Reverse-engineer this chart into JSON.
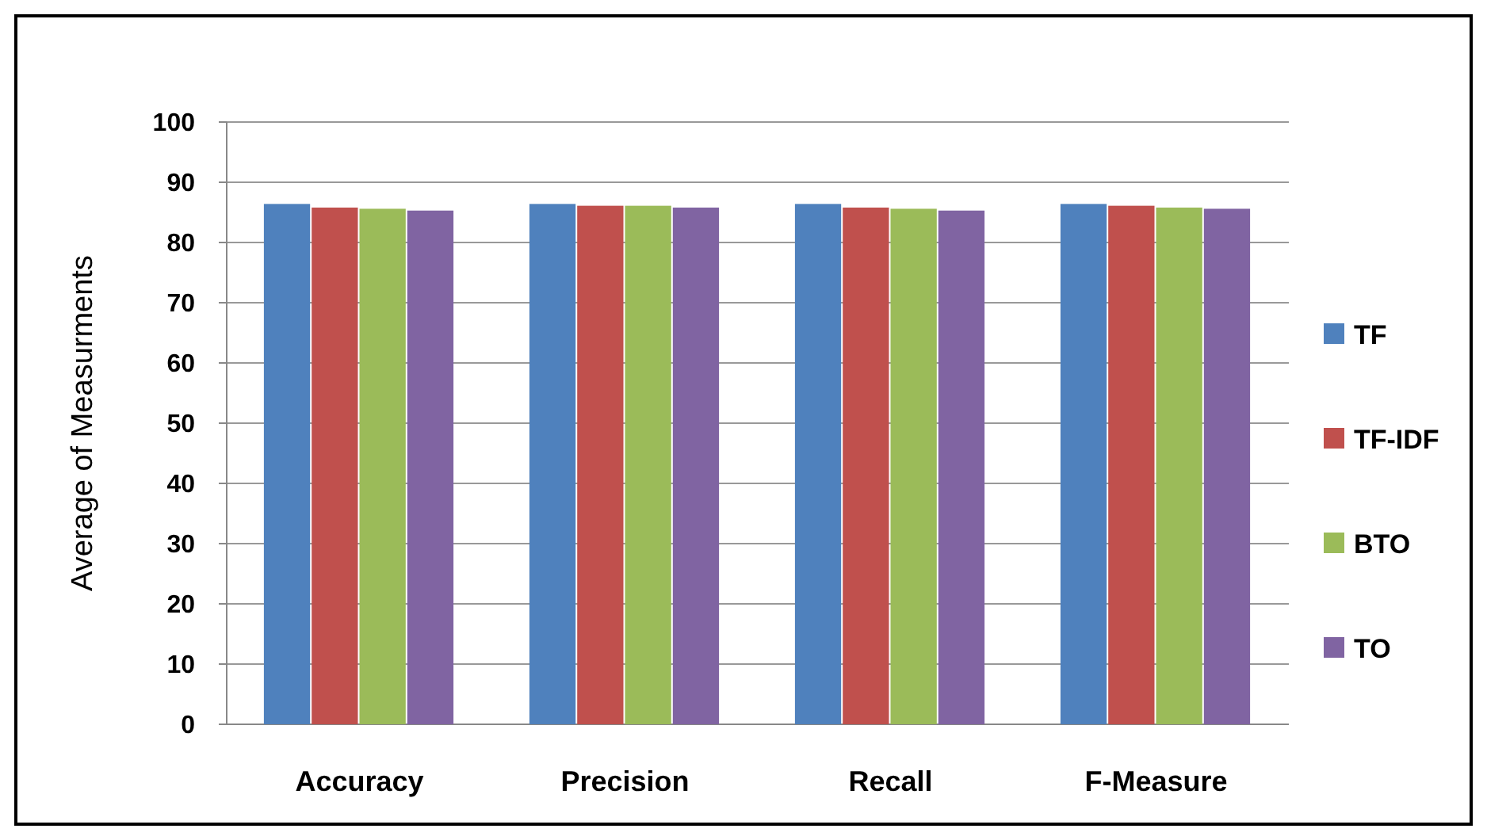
{
  "chart_data": {
    "type": "bar",
    "ylabel": "Average of Measurments",
    "categories": [
      "Accuracy",
      "Precision",
      "Recall",
      "F-Measure"
    ],
    "series": [
      {
        "name": "TF",
        "color": "#4f81bd",
        "values": [
          86.4,
          86.4,
          86.4,
          86.4
        ]
      },
      {
        "name": "TF-IDF",
        "color": "#c0504d",
        "values": [
          85.8,
          86.1,
          85.8,
          86.1
        ]
      },
      {
        "name": "BTO",
        "color": "#9bbb59",
        "values": [
          85.6,
          86.1,
          85.6,
          85.8
        ]
      },
      {
        "name": "TO",
        "color": "#8064a2",
        "values": [
          85.3,
          85.8,
          85.3,
          85.6
        ]
      }
    ],
    "ylim": [
      0,
      100
    ],
    "yticks": [
      0,
      10,
      20,
      30,
      40,
      50,
      60,
      70,
      80,
      90,
      100
    ],
    "grid": "y",
    "legend": "right"
  }
}
